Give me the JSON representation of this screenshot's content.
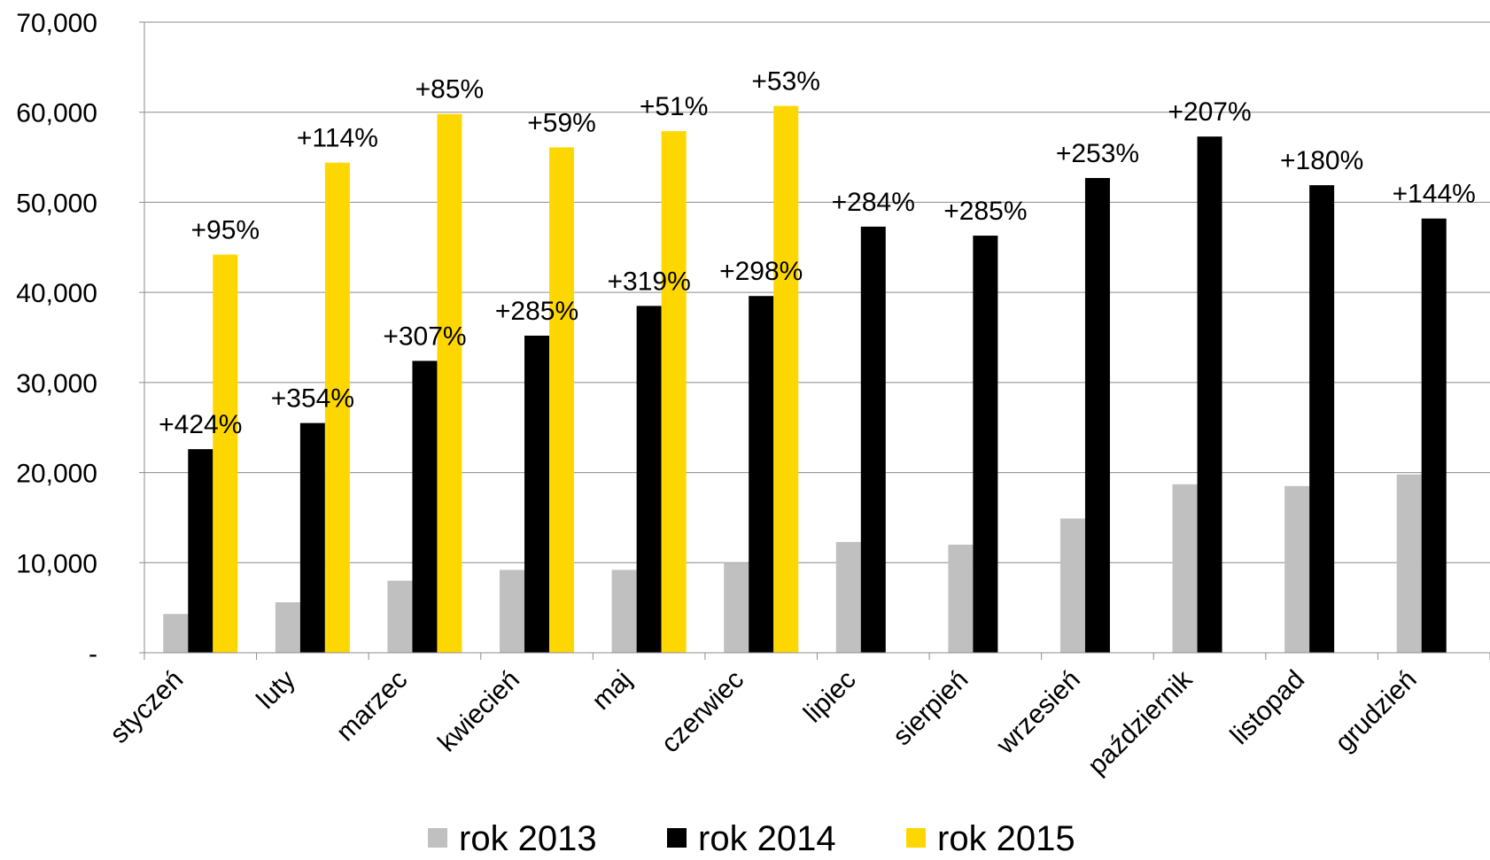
{
  "chart_data": {
    "type": "bar",
    "title": "",
    "xlabel": "",
    "ylabel": "",
    "ylim": [
      0,
      70000
    ],
    "yticks": [
      0,
      10000,
      20000,
      30000,
      40000,
      50000,
      60000,
      70000
    ],
    "ytick_labels": [
      "-",
      "10,000",
      "20,000",
      "30,000",
      "40,000",
      "50,000",
      "60,000",
      "70,000"
    ],
    "categories": [
      "styczeń",
      "luty",
      "marzec",
      "kwiecień",
      "maj",
      "czerwiec",
      "lipiec",
      "sierpień",
      "wrzesień",
      "październik",
      "listopad",
      "grudzień"
    ],
    "series": [
      {
        "name": "rok 2013",
        "color": "#c0c0c0",
        "values": [
          4300,
          5600,
          8000,
          9200,
          9200,
          10000,
          12300,
          12000,
          14900,
          18700,
          18500,
          19800
        ]
      },
      {
        "name": "rok 2014",
        "color": "#000000",
        "values": [
          22600,
          25500,
          32400,
          35200,
          38500,
          39600,
          47300,
          46300,
          52700,
          57300,
          51900,
          48200
        ],
        "data_labels": [
          "+424%",
          "+354%",
          "+307%",
          "+285%",
          "+319%",
          "+298%",
          "+284%",
          "+285%",
          "+253%",
          "+207%",
          "+180%",
          "+144%"
        ]
      },
      {
        "name": "rok 2015",
        "color": "#ffd700",
        "values": [
          44200,
          54400,
          59800,
          56100,
          57900,
          60700,
          null,
          null,
          null,
          null,
          null,
          null
        ],
        "data_labels": [
          "+95%",
          "+114%",
          "+85%",
          "+59%",
          "+51%",
          "+53%",
          null,
          null,
          null,
          null,
          null,
          null
        ]
      }
    ],
    "grid": true,
    "legend": "bottom"
  }
}
